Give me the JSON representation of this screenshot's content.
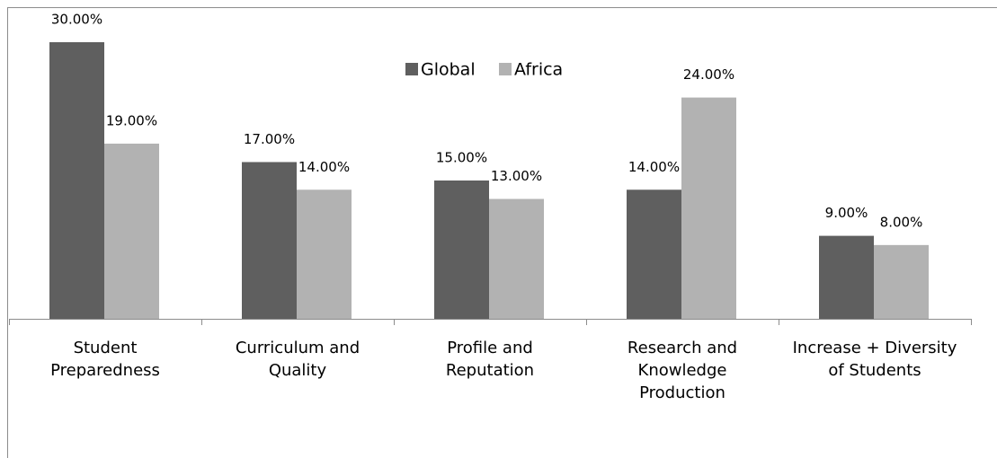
{
  "chart_data": {
    "type": "bar",
    "categories": [
      "Student\nPreparedness",
      "Curriculum and\nQuality",
      "Profile and\nReputation",
      "Research and\nKnowledge\nProduction",
      "Increase + Diversity\nof Students"
    ],
    "series": [
      {
        "name": "Global",
        "color": "#5f5f5f",
        "values": [
          30,
          17,
          15,
          14,
          9
        ],
        "value_labels": [
          "30.00%",
          "17.00%",
          "15.00%",
          "14.00%",
          "9.00%"
        ]
      },
      {
        "name": "Africa",
        "color": "#b2b2b2",
        "values": [
          19,
          14,
          13,
          24,
          8
        ],
        "value_labels": [
          "19.00%",
          "14.00%",
          "13.00%",
          "24.00%",
          "8.00%"
        ]
      }
    ],
    "legend": "top"
  }
}
